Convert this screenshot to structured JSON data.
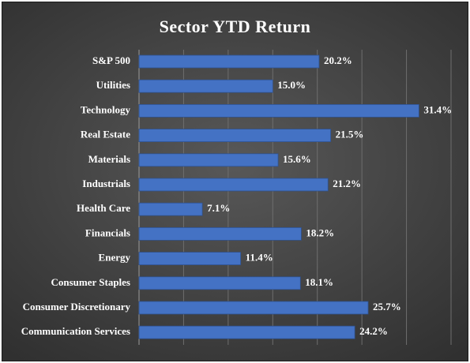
{
  "chart_data": {
    "type": "bar",
    "orientation": "horizontal",
    "title": "Sector YTD Return",
    "categories": [
      "S&P 500",
      "Utilities",
      "Technology",
      "Real Estate",
      "Materials",
      "Industrials",
      "Health Care",
      "Financials",
      "Energy",
      "Consumer Staples",
      "Consumer Discretionary",
      "Communication Services"
    ],
    "values": [
      20.2,
      15.0,
      31.4,
      21.5,
      15.6,
      21.2,
      7.1,
      18.2,
      11.4,
      18.1,
      25.7,
      24.2
    ],
    "value_labels": [
      "20.2%",
      "15.0%",
      "31.4%",
      "21.5%",
      "15.6%",
      "21.2%",
      "7.1%",
      "18.2%",
      "11.4%",
      "18.1%",
      "25.7%",
      "24.2%"
    ],
    "xlim": [
      0,
      35
    ],
    "grid": true,
    "legend": "none",
    "colors": {
      "bar": "#4472C4",
      "bar_edge": "#2f528f",
      "text": "#ffffff",
      "grid": "#6e6e6e",
      "background": "#404040"
    }
  }
}
